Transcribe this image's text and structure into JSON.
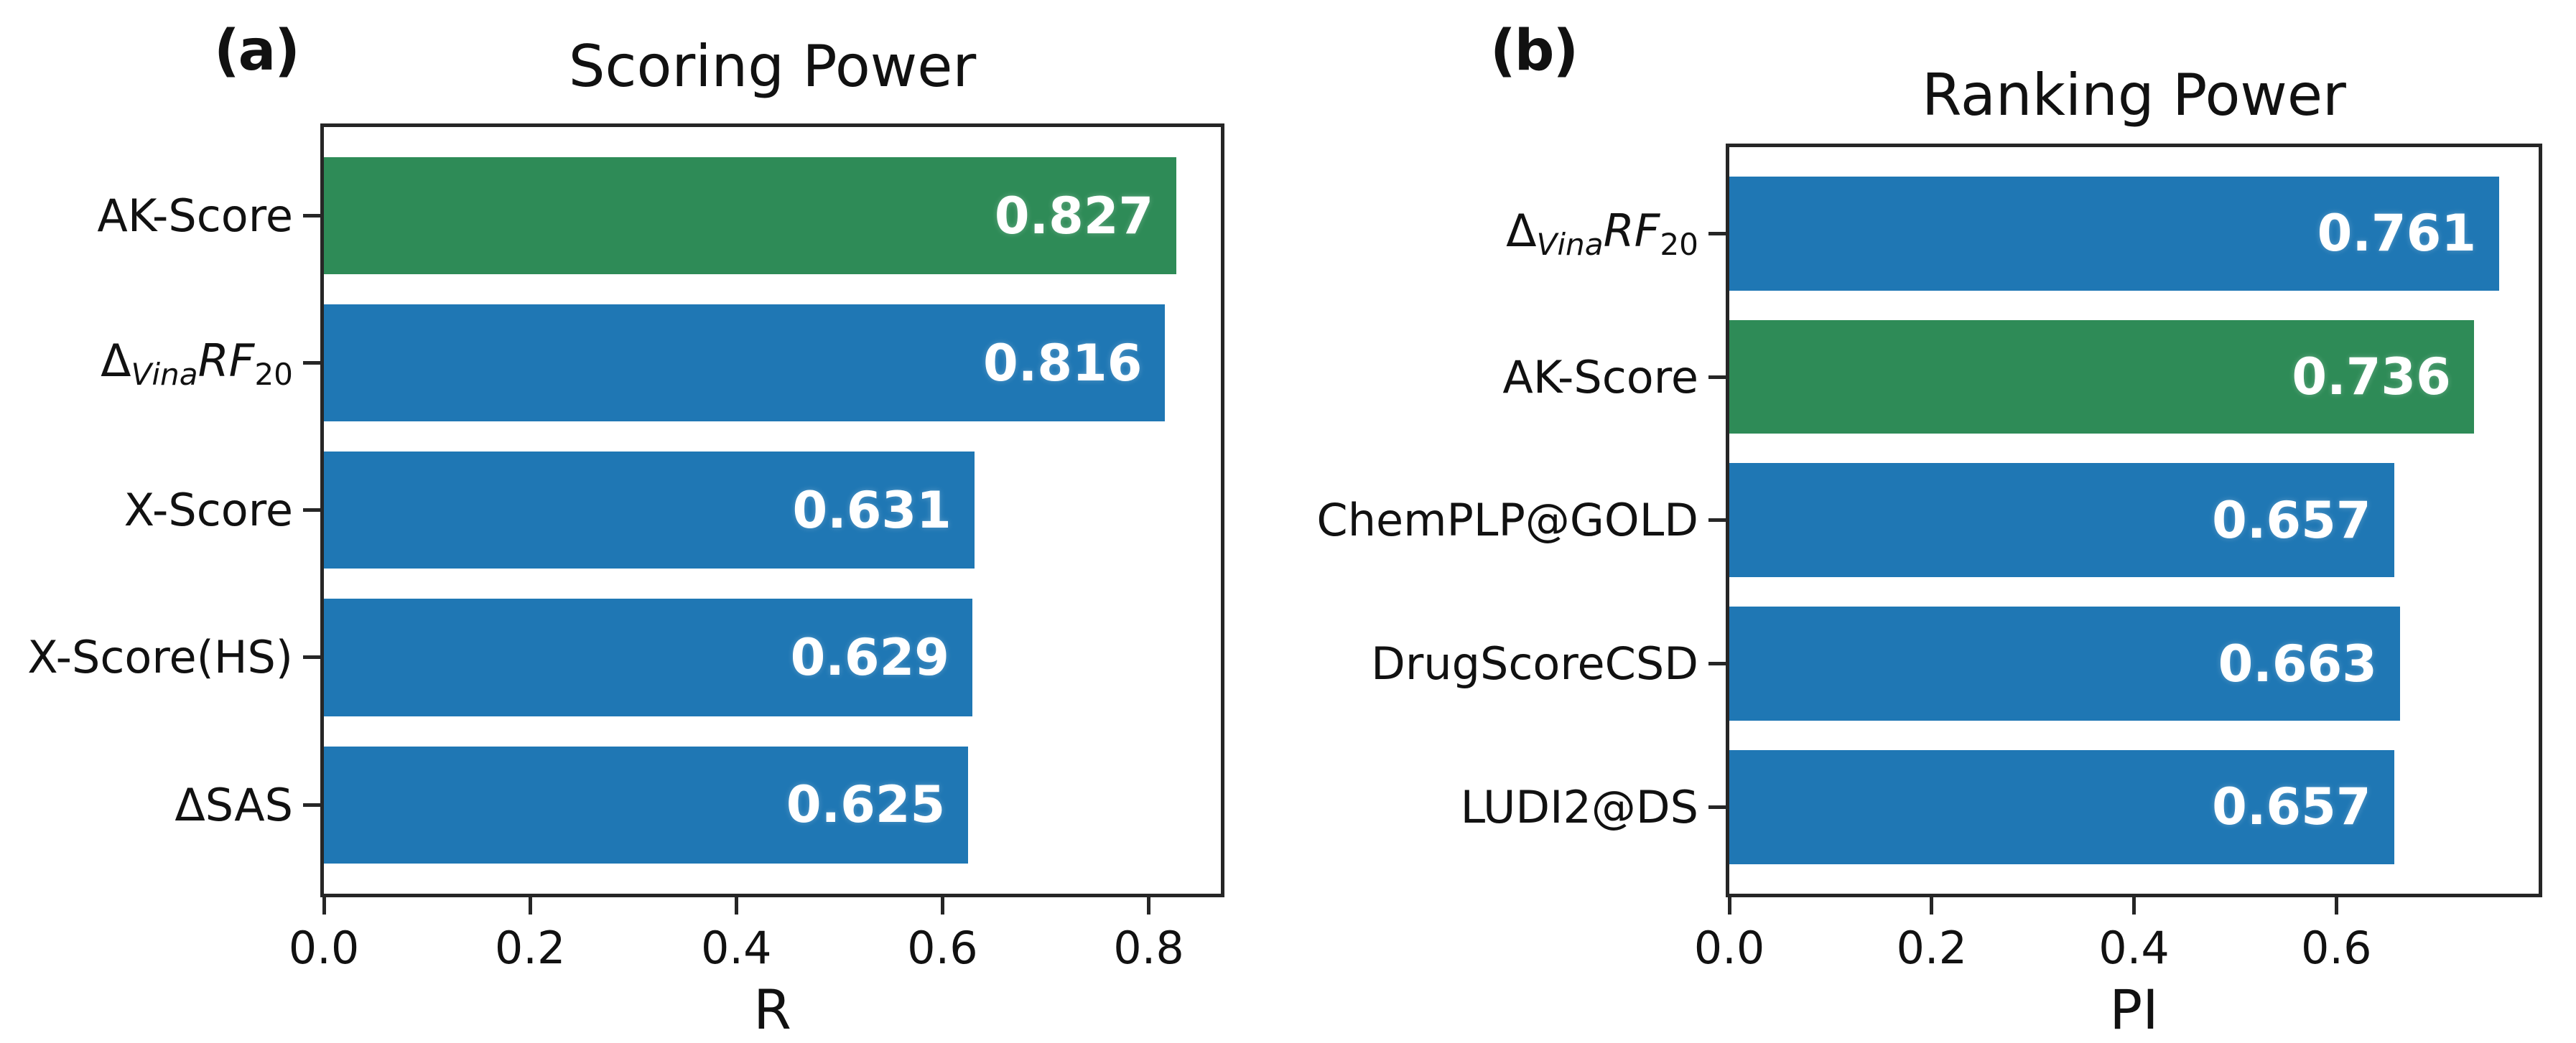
{
  "figure": {
    "panels": [
      {
        "panel_label": "(a)",
        "title": "Scoring Power",
        "xlabel": "R",
        "xtick_labels": [
          "0.0",
          "0.2",
          "0.4",
          "0.6",
          "0.8"
        ],
        "bars": [
          {
            "value_label": "0.827",
            "label_segments": [
              {
                "t": "AK-Score",
                "v": "n"
              }
            ]
          },
          {
            "value_label": "0.816",
            "label_segments": [
              {
                "t": "Δ",
                "v": "n"
              },
              {
                "t": "Vina",
                "v": "sub-i"
              },
              {
                "t": "RF",
                "v": "i"
              },
              {
                "t": "20",
                "v": "sub"
              }
            ]
          },
          {
            "value_label": "0.631",
            "label_segments": [
              {
                "t": "X-Score",
                "v": "n"
              }
            ]
          },
          {
            "value_label": "0.629",
            "label_segments": [
              {
                "t": "X-Score(HS)",
                "v": "n"
              }
            ]
          },
          {
            "value_label": "0.625",
            "label_segments": [
              {
                "t": "ΔSAS",
                "v": "n"
              }
            ]
          }
        ]
      },
      {
        "panel_label": "(b)",
        "title": "Ranking Power",
        "xlabel": "PI",
        "xtick_labels": [
          "0.0",
          "0.2",
          "0.4",
          "0.6"
        ],
        "bars": [
          {
            "value_label": "0.761",
            "label_segments": [
              {
                "t": "Δ",
                "v": "n"
              },
              {
                "t": "Vina",
                "v": "sub-i"
              },
              {
                "t": "RF",
                "v": "i"
              },
              {
                "t": "20",
                "v": "sub"
              }
            ]
          },
          {
            "value_label": "0.736",
            "label_segments": [
              {
                "t": "AK-Score",
                "v": "n"
              }
            ]
          },
          {
            "value_label": "0.657",
            "label_segments": [
              {
                "t": "ChemPLP@GOLD",
                "v": "n"
              }
            ]
          },
          {
            "value_label": "0.663",
            "label_segments": [
              {
                "t": "DrugScoreCSD",
                "v": "n"
              }
            ]
          },
          {
            "value_label": "0.657",
            "label_segments": [
              {
                "t": "LUDI2@DS",
                "v": "n"
              }
            ]
          }
        ]
      }
    ]
  },
  "colors": {
    "highlight_green": "#2e8b57",
    "default_blue": "#1f77b4",
    "axis": "#262626",
    "value_text": "#ffffff"
  },
  "chart_data": [
    {
      "type": "bar",
      "orientation": "horizontal",
      "panel_label": "(a)",
      "title": "Scoring Power",
      "xlabel": "R",
      "ylabel": "",
      "categories": [
        "AK-Score",
        "ΔVinaRF20",
        "X-Score",
        "X-Score(HS)",
        "ΔSAS"
      ],
      "values": [
        0.827,
        0.816,
        0.631,
        0.629,
        0.625
      ],
      "value_labels": [
        "0.827",
        "0.816",
        "0.631",
        "0.629",
        "0.625"
      ],
      "bar_colors": [
        "#2e8b57",
        "#1f77b4",
        "#1f77b4",
        "#1f77b4",
        "#1f77b4"
      ],
      "xlim": [
        0,
        0.87
      ],
      "xticks": [
        0,
        0.2,
        0.4,
        0.6,
        0.8
      ],
      "grid": false,
      "legend": "none",
      "value_labels_shown": true
    },
    {
      "type": "bar",
      "orientation": "horizontal",
      "panel_label": "(b)",
      "title": "Ranking Power",
      "xlabel": "PI",
      "ylabel": "",
      "categories": [
        "ΔVinaRF20",
        "AK-Score",
        "ChemPLP@GOLD",
        "DrugScoreCSD",
        "LUDI2@DS"
      ],
      "values": [
        0.761,
        0.736,
        0.657,
        0.663,
        0.657
      ],
      "value_labels": [
        "0.761",
        "0.736",
        "0.657",
        "0.663",
        "0.657"
      ],
      "bar_colors": [
        "#1f77b4",
        "#2e8b57",
        "#1f77b4",
        "#1f77b4",
        "#1f77b4"
      ],
      "xlim": [
        0,
        0.8
      ],
      "xticks": [
        0,
        0.2,
        0.4,
        0.6
      ],
      "grid": false,
      "legend": "none",
      "value_labels_shown": true
    }
  ]
}
